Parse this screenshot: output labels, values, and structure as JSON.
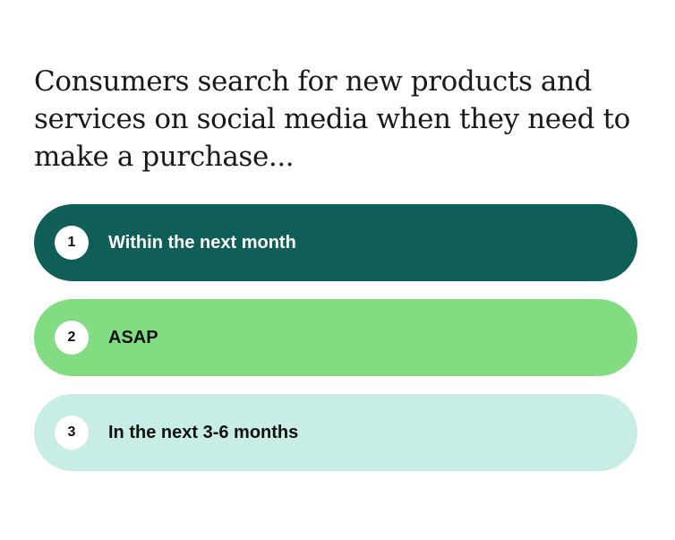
{
  "headline": "Consumers search for new products and services on social media when they need to make a purchase...",
  "items": [
    {
      "rank": "1",
      "label": "Within the next month",
      "bg": "#0f5f58",
      "text_color": "#ffffff"
    },
    {
      "rank": "2",
      "label": "ASAP",
      "bg": "#82dc82",
      "text_color": "#111111"
    },
    {
      "rank": "3",
      "label": "In the next 3-6 months",
      "bg": "#c8ece6",
      "text_color": "#111111"
    }
  ]
}
